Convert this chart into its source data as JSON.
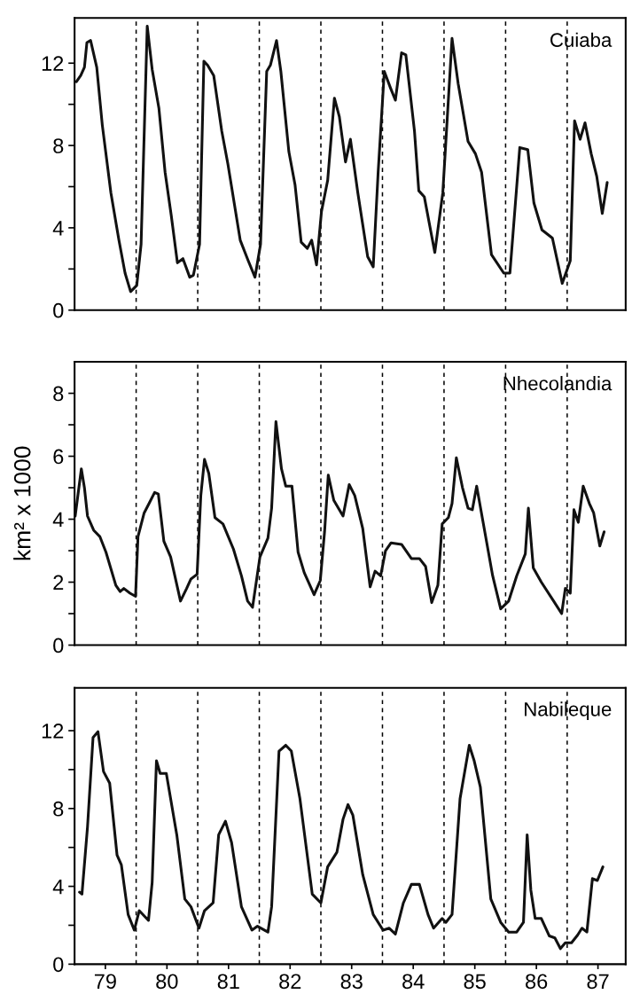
{
  "chart_data": [
    {
      "type": "line",
      "title": "Cuiaba",
      "tick_labels": "y",
      "xlim": [
        78.5,
        87.45
      ],
      "ylim": [
        0,
        14.2
      ],
      "yticks": [
        0,
        {
          "value": 2,
          "label": null
        },
        4,
        {
          "value": 6,
          "label": null
        },
        8,
        {
          "value": 10,
          "label": null
        },
        12
      ],
      "ref_lines": [
        {
          "axis": "x",
          "value": 79.5,
          "line_style": "dashed",
          "color": "#000000"
        },
        {
          "axis": "x",
          "value": 80.5,
          "line_style": "dashed",
          "color": "#000000"
        },
        {
          "axis": "x",
          "value": 81.5,
          "line_style": "dashed",
          "color": "#000000"
        },
        {
          "axis": "x",
          "value": 82.5,
          "line_style": "dashed",
          "color": "#000000"
        },
        {
          "axis": "x",
          "value": 83.5,
          "line_style": "dashed",
          "color": "#000000"
        },
        {
          "axis": "x",
          "value": 84.5,
          "line_style": "dashed",
          "color": "#000000"
        },
        {
          "axis": "x",
          "value": 85.5,
          "line_style": "dashed",
          "color": "#000000"
        },
        {
          "axis": "x",
          "value": 86.5,
          "line_style": "dashed",
          "color": "#000000"
        }
      ],
      "series": [
        {
          "color": "#111111",
          "x": [
            78.53,
            78.6,
            78.66,
            78.7,
            78.76,
            78.86,
            78.95,
            79.09,
            79.22,
            79.32,
            79.41,
            79.51,
            79.58,
            79.68,
            79.76,
            79.87,
            79.97,
            80.07,
            80.17,
            80.26,
            80.37,
            80.43,
            80.53,
            80.6,
            80.66,
            80.76,
            80.89,
            80.99,
            81.19,
            81.32,
            81.43,
            81.52,
            81.62,
            81.68,
            81.78,
            81.85,
            81.98,
            82.08,
            82.18,
            82.28,
            82.35,
            82.43,
            82.51,
            82.61,
            82.72,
            82.8,
            82.9,
            82.98,
            83.1,
            83.26,
            83.35,
            83.43,
            83.53,
            83.63,
            83.71,
            83.81,
            83.88,
            84.02,
            84.09,
            84.18,
            84.35,
            84.48,
            84.63,
            84.73,
            84.89,
            85.01,
            85.11,
            85.27,
            85.47,
            85.57,
            85.73,
            85.86,
            85.96,
            86.09,
            86.26,
            86.42,
            86.55,
            86.62,
            86.71,
            86.79,
            86.89,
            86.98,
            87.07,
            87.15
          ],
          "values": [
            11.1,
            11.4,
            11.8,
            13.0,
            13.1,
            11.8,
            9.0,
            5.7,
            3.4,
            1.8,
            0.9,
            1.2,
            3.2,
            13.8,
            11.7,
            9.8,
            6.7,
            4.6,
            2.3,
            2.5,
            1.6,
            1.7,
            3.2,
            12.1,
            11.9,
            11.4,
            8.7,
            7.1,
            3.4,
            2.4,
            1.6,
            3.2,
            11.6,
            11.9,
            13.1,
            11.6,
            7.7,
            6.1,
            3.3,
            3.0,
            3.4,
            2.2,
            4.8,
            6.3,
            10.3,
            9.4,
            7.2,
            8.3,
            5.7,
            2.6,
            2.1,
            6.7,
            11.6,
            10.8,
            10.2,
            12.5,
            12.4,
            8.7,
            5.8,
            5.5,
            2.8,
            5.7,
            13.2,
            11.0,
            8.2,
            7.6,
            6.7,
            2.7,
            1.8,
            1.8,
            7.9,
            7.8,
            5.2,
            3.9,
            3.5,
            1.3,
            2.4,
            9.2,
            8.3,
            9.1,
            7.6,
            6.5,
            4.7,
            6.2
          ]
        }
      ]
    },
    {
      "type": "line",
      "title": "Nhecolandia",
      "ylabel": "km² x 1000",
      "tick_labels": "y",
      "xlim": [
        78.5,
        87.45
      ],
      "ylim": [
        0,
        9
      ],
      "yticks": [
        0,
        {
          "value": 1,
          "label": null
        },
        2,
        {
          "value": 3,
          "label": null
        },
        4,
        {
          "value": 5,
          "label": null
        },
        6,
        {
          "value": 7,
          "label": null
        },
        8
      ],
      "ref_lines": [
        {
          "axis": "x",
          "value": 79.5,
          "line_style": "dashed",
          "color": "#000000"
        },
        {
          "axis": "x",
          "value": 80.5,
          "line_style": "dashed",
          "color": "#000000"
        },
        {
          "axis": "x",
          "value": 81.5,
          "line_style": "dashed",
          "color": "#000000"
        },
        {
          "axis": "x",
          "value": 82.5,
          "line_style": "dashed",
          "color": "#000000"
        },
        {
          "axis": "x",
          "value": 83.5,
          "line_style": "dashed",
          "color": "#000000"
        },
        {
          "axis": "x",
          "value": 84.5,
          "line_style": "dashed",
          "color": "#000000"
        },
        {
          "axis": "x",
          "value": 85.5,
          "line_style": "dashed",
          "color": "#000000"
        },
        {
          "axis": "x",
          "value": 86.5,
          "line_style": "dashed",
          "color": "#000000"
        }
      ],
      "series": [
        {
          "color": "#111111",
          "x": [
            78.51,
            78.57,
            78.61,
            78.66,
            78.71,
            78.81,
            78.91,
            79.01,
            79.17,
            79.24,
            79.3,
            79.4,
            79.49,
            79.53,
            79.63,
            79.71,
            79.8,
            79.86,
            79.95,
            80.06,
            80.22,
            80.32,
            80.39,
            80.49,
            80.55,
            80.61,
            80.68,
            80.78,
            80.91,
            81.08,
            81.21,
            81.31,
            81.39,
            81.51,
            81.64,
            81.7,
            81.77,
            81.86,
            81.93,
            82.03,
            82.13,
            82.23,
            82.39,
            82.49,
            82.56,
            82.62,
            82.71,
            82.86,
            82.96,
            83.05,
            83.18,
            83.3,
            83.38,
            83.47,
            83.55,
            83.64,
            83.81,
            83.97,
            84.1,
            84.2,
            84.3,
            84.4,
            84.47,
            84.57,
            84.63,
            84.7,
            84.8,
            84.89,
            84.96,
            85.03,
            85.13,
            85.29,
            85.42,
            85.55,
            85.68,
            85.82,
            85.87,
            85.95,
            86.08,
            86.28,
            86.41,
            86.47,
            86.55,
            86.61,
            86.68,
            86.76,
            86.86,
            86.93,
            87.03,
            87.1
          ],
          "values": [
            4.1,
            5.0,
            5.6,
            5.0,
            4.1,
            3.65,
            3.45,
            2.95,
            1.9,
            1.7,
            1.8,
            1.65,
            1.55,
            3.45,
            4.2,
            4.5,
            4.85,
            4.8,
            3.3,
            2.8,
            1.4,
            1.8,
            2.1,
            2.25,
            4.75,
            5.9,
            5.45,
            4.05,
            3.85,
            3.05,
            2.2,
            1.4,
            1.2,
            2.8,
            3.4,
            4.35,
            7.1,
            5.6,
            5.05,
            5.05,
            2.95,
            2.3,
            1.6,
            2.05,
            3.6,
            5.4,
            4.6,
            4.1,
            5.1,
            4.75,
            3.7,
            1.85,
            2.35,
            2.2,
            3.0,
            3.25,
            3.2,
            2.75,
            2.75,
            2.5,
            1.35,
            1.9,
            3.85,
            4.05,
            4.5,
            5.95,
            5.0,
            4.35,
            4.3,
            5.05,
            3.95,
            2.2,
            1.15,
            1.4,
            2.2,
            2.9,
            4.35,
            2.45,
            2.0,
            1.4,
            1.0,
            1.8,
            1.65,
            4.3,
            3.9,
            5.05,
            4.5,
            4.2,
            3.15,
            3.6
          ]
        }
      ]
    },
    {
      "type": "line",
      "title": "Nabileque",
      "xlim": [
        78.5,
        87.45
      ],
      "ylim": [
        0,
        14.2
      ],
      "xticks": [
        79,
        80,
        81,
        82,
        83,
        84,
        85,
        86,
        87
      ],
      "yticks": [
        0,
        {
          "value": 2,
          "label": null
        },
        4,
        {
          "value": 6,
          "label": null
        },
        8,
        {
          "value": 10,
          "label": null
        },
        12
      ],
      "ref_lines": [
        {
          "axis": "x",
          "value": 79.5,
          "line_style": "dashed",
          "color": "#000000"
        },
        {
          "axis": "x",
          "value": 80.5,
          "line_style": "dashed",
          "color": "#000000"
        },
        {
          "axis": "x",
          "value": 81.5,
          "line_style": "dashed",
          "color": "#000000"
        },
        {
          "axis": "x",
          "value": 82.5,
          "line_style": "dashed",
          "color": "#000000"
        },
        {
          "axis": "x",
          "value": 83.5,
          "line_style": "dashed",
          "color": "#000000"
        },
        {
          "axis": "x",
          "value": 84.5,
          "line_style": "dashed",
          "color": "#000000"
        },
        {
          "axis": "x",
          "value": 85.5,
          "line_style": "dashed",
          "color": "#000000"
        },
        {
          "axis": "x",
          "value": 86.5,
          "line_style": "dashed",
          "color": "#000000"
        }
      ],
      "series": [
        {
          "color": "#111111",
          "x": [
            78.58,
            78.62,
            78.71,
            78.8,
            78.88,
            78.97,
            79.07,
            79.19,
            79.26,
            79.37,
            79.47,
            79.55,
            79.7,
            79.76,
            79.83,
            79.89,
            79.99,
            80.16,
            80.29,
            80.39,
            80.52,
            80.61,
            80.75,
            80.84,
            80.95,
            81.05,
            81.21,
            81.38,
            81.47,
            81.64,
            81.7,
            81.82,
            81.93,
            82.02,
            82.16,
            82.36,
            82.5,
            82.61,
            82.76,
            82.86,
            82.94,
            83.02,
            83.18,
            83.35,
            83.51,
            83.61,
            83.71,
            83.84,
            83.97,
            84.1,
            84.24,
            84.33,
            84.47,
            84.53,
            84.63,
            84.76,
            84.91,
            84.99,
            85.09,
            85.26,
            85.42,
            85.55,
            85.68,
            85.79,
            85.85,
            85.91,
            85.98,
            86.08,
            86.21,
            86.3,
            86.39,
            86.47,
            86.57,
            86.67,
            86.74,
            86.82,
            86.91,
            86.99,
            87.08
          ],
          "values": [
            3.7,
            3.6,
            7.05,
            11.65,
            11.95,
            9.9,
            9.3,
            5.6,
            5.1,
            2.55,
            1.75,
            2.75,
            2.25,
            4.2,
            10.45,
            9.8,
            9.8,
            6.65,
            3.35,
            2.95,
            1.85,
            2.75,
            3.15,
            6.65,
            7.35,
            6.25,
            2.95,
            1.75,
            1.95,
            1.65,
            2.95,
            10.95,
            11.25,
            10.95,
            8.5,
            3.6,
            3.15,
            5.0,
            5.75,
            7.45,
            8.2,
            7.65,
            4.6,
            2.55,
            1.75,
            1.85,
            1.55,
            3.15,
            4.1,
            4.1,
            2.55,
            1.85,
            2.35,
            2.15,
            2.55,
            8.5,
            11.25,
            10.45,
            9.1,
            3.35,
            2.15,
            1.65,
            1.65,
            2.15,
            6.65,
            3.8,
            2.35,
            2.35,
            1.45,
            1.35,
            0.8,
            1.1,
            1.1,
            1.5,
            1.85,
            1.65,
            4.4,
            4.3,
            5.0
          ]
        }
      ]
    }
  ]
}
